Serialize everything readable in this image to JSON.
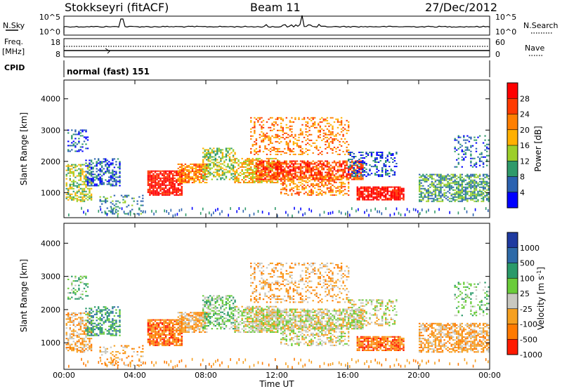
{
  "header": {
    "station": "Stokkseyri (fitACF)",
    "beam": "Beam 11",
    "date": "27/Dec/2012"
  },
  "top_panels": {
    "nsky_label": "N.Sky",
    "nsky_ticks": [
      "10^5",
      "10^0"
    ],
    "nsearch_label": "N.Search",
    "nsearch_ticks": [
      "10^5",
      "10^0"
    ],
    "freq_label_line1": "Freq.",
    "freq_label_line2": "[MHz]",
    "freq_ticks": [
      "18",
      "8"
    ],
    "nave_label": "Nave",
    "nave_ticks": [
      "60",
      "0"
    ],
    "cpid_label": "CPID",
    "cpid_text": "normal (fast) 151"
  },
  "chart_data": [
    {
      "type": "heatmap",
      "name": "power",
      "ylabel": "Slant Range [km]",
      "ylim": [
        200,
        4600
      ],
      "yticks": [
        1000,
        2000,
        3000,
        4000
      ],
      "x_ticks": [
        "00:00",
        "04:00",
        "08:00",
        "12:00",
        "16:00",
        "20:00",
        "00:00"
      ],
      "colorbar": {
        "label": "Power [dB]",
        "ticks": [
          "28",
          "24",
          "20",
          "16",
          "12",
          "8",
          "4"
        ],
        "colors": [
          "#ff0000",
          "#ff3a00",
          "#ff7f00",
          "#ffb000",
          "#9ccf2a",
          "#2f9a6a",
          "#2b62b0",
          "#0000ff"
        ]
      }
    },
    {
      "type": "heatmap",
      "name": "velocity",
      "ylabel": "Slant Range [km]",
      "ylim": [
        200,
        4600
      ],
      "yticks": [
        1000,
        2000,
        3000,
        4000
      ],
      "x_ticks": [
        "00:00",
        "04:00",
        "08:00",
        "12:00",
        "16:00",
        "20:00",
        "00:00"
      ],
      "xlabel": "Time UT",
      "colorbar": {
        "label": "Velocity [m s-1]",
        "ticks": [
          "1000",
          "500",
          "100",
          "25",
          "-25",
          "-100",
          "-500",
          "-1000"
        ],
        "colors": [
          "#1f3aa0",
          "#2e6aa8",
          "#2a9a6a",
          "#6acc3a",
          "#c8c8c0",
          "#f6a020",
          "#ff7a00",
          "#ff1a00"
        ]
      }
    }
  ]
}
